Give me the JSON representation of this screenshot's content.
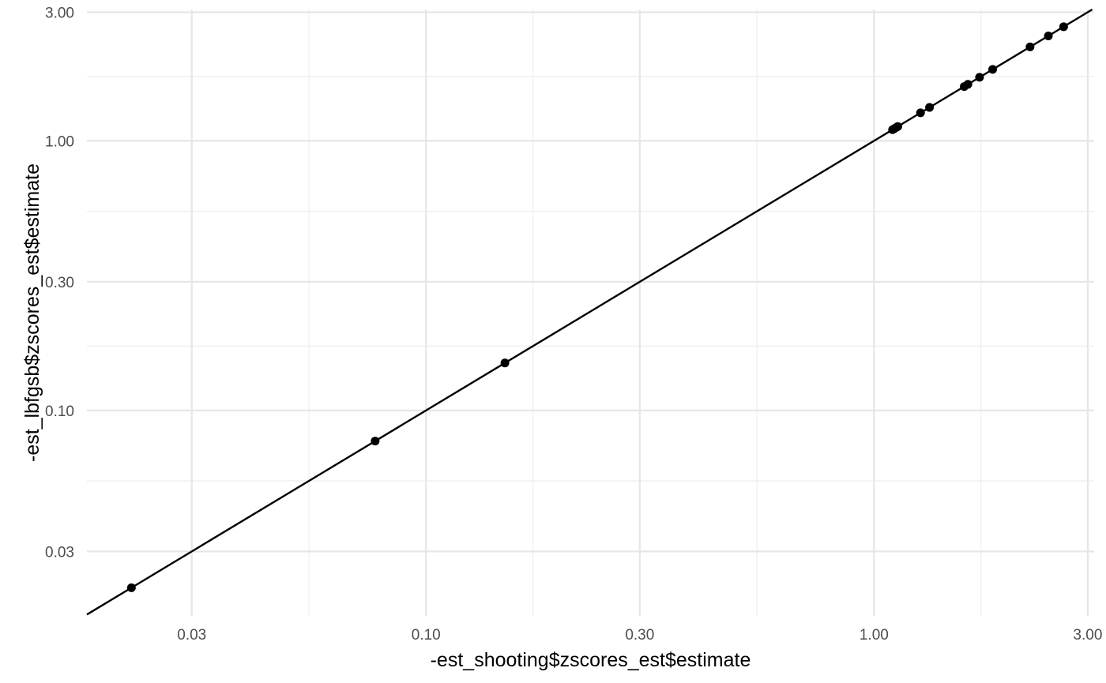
{
  "chart_data": {
    "type": "scatter",
    "title": "",
    "xlabel": "-est_shooting$zscores_est$estimate",
    "ylabel": "-est_lbfgsb$zscores_est$estimate",
    "x_scale": "log10",
    "y_scale": "log10",
    "xlim": [
      0.0175,
      3.1
    ],
    "ylim": [
      0.0173,
      3.07
    ],
    "x_ticks": [
      0.03,
      0.1,
      0.3,
      1.0,
      3.0
    ],
    "x_tick_labels": [
      "0.03",
      "0.10",
      "0.30",
      "1.00",
      "3.00"
    ],
    "y_ticks": [
      0.03,
      0.1,
      0.3,
      1.0,
      3.0
    ],
    "y_tick_labels": [
      "0.03",
      "0.10",
      "0.30",
      "1.00",
      "3.00"
    ],
    "x_minor": [
      0.0548,
      0.1732,
      0.5477,
      1.7321
    ],
    "y_minor": [
      0.0548,
      0.1732,
      0.5477,
      1.7321
    ],
    "grid": true,
    "reference_line": {
      "slope": 1,
      "intercept": 0,
      "color": "#000000"
    },
    "point_color": "#000000",
    "points": [
      {
        "x": 0.022,
        "y": 0.022
      },
      {
        "x": 0.077,
        "y": 0.077
      },
      {
        "x": 0.15,
        "y": 0.15
      },
      {
        "x": 1.1,
        "y": 1.1
      },
      {
        "x": 1.11,
        "y": 1.11
      },
      {
        "x": 1.12,
        "y": 1.12
      },
      {
        "x": 1.13,
        "y": 1.13
      },
      {
        "x": 1.27,
        "y": 1.27
      },
      {
        "x": 1.33,
        "y": 1.33
      },
      {
        "x": 1.59,
        "y": 1.59
      },
      {
        "x": 1.62,
        "y": 1.62
      },
      {
        "x": 1.72,
        "y": 1.72
      },
      {
        "x": 1.84,
        "y": 1.84
      },
      {
        "x": 2.23,
        "y": 2.23
      },
      {
        "x": 2.45,
        "y": 2.45
      },
      {
        "x": 2.65,
        "y": 2.65
      }
    ]
  }
}
